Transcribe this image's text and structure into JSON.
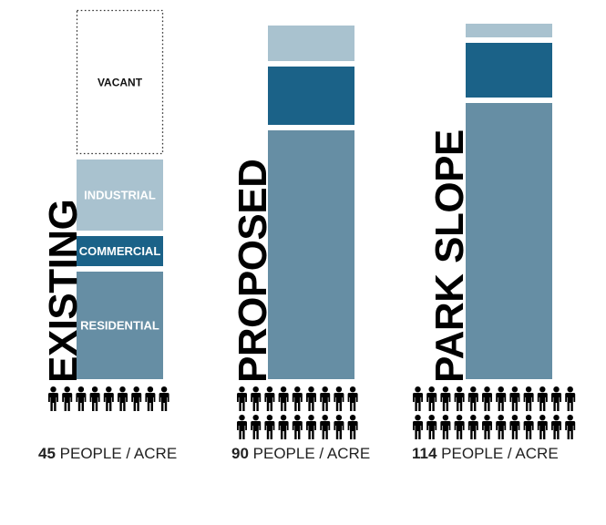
{
  "colors": {
    "residential": "#668ea4",
    "commercial": "#1b6288",
    "industrial": "#a9c2cf",
    "vacant_border": "#333333",
    "people": "#000000"
  },
  "icon": "person-icon",
  "chart_data": {
    "type": "stacked-bar",
    "unit": "people / acre",
    "series": [
      "residential",
      "commercial",
      "industrial",
      "vacant"
    ],
    "segment_labels": {
      "vacant": "VACANT",
      "industrial": "INDUSTRIAL",
      "commercial": "COMMERCIAL",
      "residential": "RESIDENTIAL"
    },
    "columns": [
      {
        "title": "EXISTING",
        "people_per_acre": "45",
        "people_label": "PEOPLE / ACRE",
        "people_icon_rows": 1,
        "people_icon_cols": 9,
        "segments": {
          "residential": 118,
          "commercial": 33,
          "industrial": 78,
          "vacant": 158
        },
        "show_segment_labels": true
      },
      {
        "title": "PROPOSED",
        "people_per_acre": "90",
        "people_label": "PEOPLE / ACRE",
        "people_icon_rows": 2,
        "people_icon_cols": 9,
        "segments": {
          "residential": 273,
          "commercial": 64,
          "industrial": 39,
          "vacant": 0
        },
        "show_segment_labels": false
      },
      {
        "title": "PARK SLOPE",
        "people_per_acre": "114",
        "people_label": "PEOPLE / ACRE",
        "people_icon_rows": 2,
        "people_icon_cols": 12,
        "segments": {
          "residential": 303,
          "commercial": 60,
          "industrial": 15,
          "vacant": 0
        },
        "show_segment_labels": false
      }
    ]
  }
}
